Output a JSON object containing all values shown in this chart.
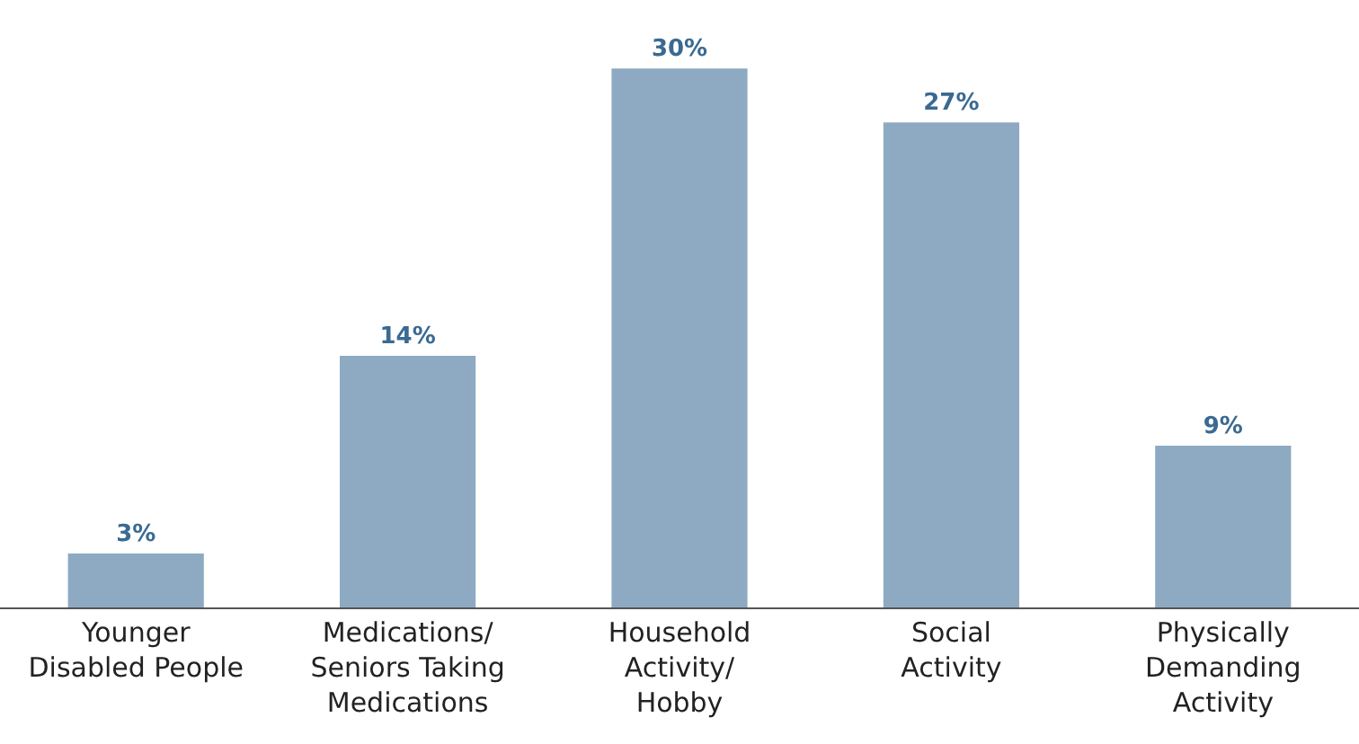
{
  "chart_data": {
    "type": "bar",
    "categories": [
      "Younger\nDisabled People",
      "Medications/\nSeniors Taking\nMedications",
      "Household\nActivity/\nHobby",
      "Social\nActivity",
      "Physically\nDemanding\nActivity"
    ],
    "values": [
      3,
      14,
      30,
      27,
      9
    ],
    "color": "#8eaac2",
    "value_labels": [
      "3%",
      "14%",
      "30%",
      "27%",
      "9%"
    ],
    "grid": false,
    "legend": false
  }
}
